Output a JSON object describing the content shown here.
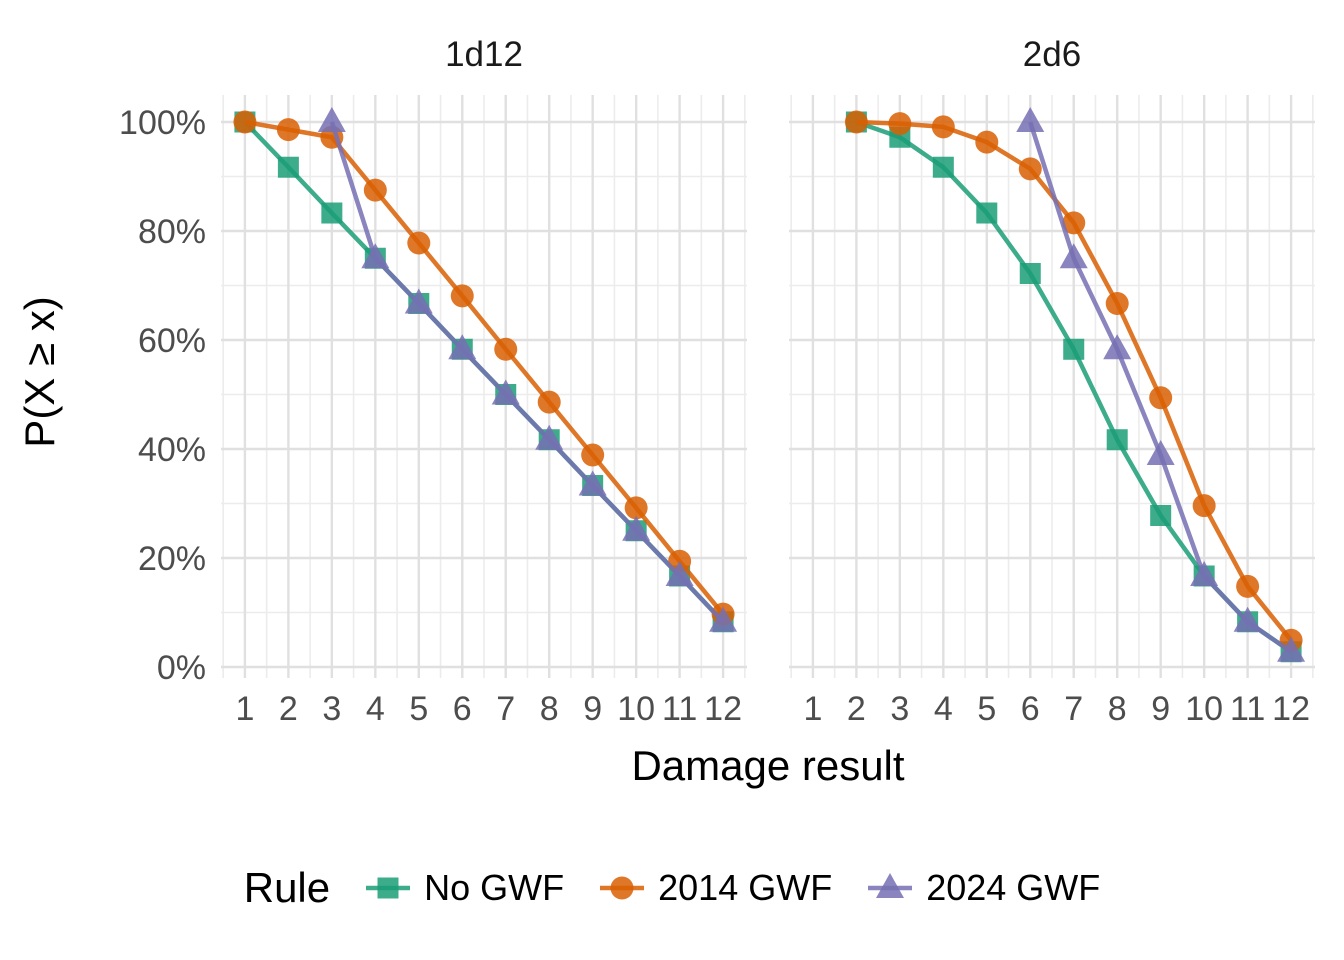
{
  "titles": {
    "x_axis": "Damage result",
    "y_axis": "P(X ≥ x)"
  },
  "legend": {
    "title": "Rule",
    "items": [
      "No GWF",
      "2014 GWF",
      "2024 GWF"
    ]
  },
  "axes": {
    "x_tick_labels": [
      "1",
      "2",
      "3",
      "4",
      "5",
      "6",
      "7",
      "8",
      "9",
      "10",
      "11",
      "12"
    ],
    "y_ticks": [
      {
        "value": 0,
        "label": "0%"
      },
      {
        "value": 20,
        "label": "20%"
      },
      {
        "value": 40,
        "label": "40%"
      },
      {
        "value": 60,
        "label": "60%"
      },
      {
        "value": 80,
        "label": "80%"
      },
      {
        "value": 100,
        "label": "100%"
      }
    ]
  },
  "chart_data": [
    {
      "type": "line",
      "title": "1d12",
      "xlabel": "Damage result",
      "ylabel": "P(X ≥ x)",
      "xlim": [
        1,
        12
      ],
      "ylim": [
        0,
        100
      ],
      "grid": true,
      "legend_position": "bottom",
      "series": [
        {
          "name": "No GWF",
          "color": "#1B9E77",
          "marker": "square",
          "x": [
            1,
            2,
            3,
            4,
            5,
            6,
            7,
            8,
            9,
            10,
            11,
            12
          ],
          "y": [
            100,
            91.7,
            83.3,
            75,
            66.7,
            58.3,
            50,
            41.7,
            33.3,
            25,
            16.7,
            8.3
          ]
        },
        {
          "name": "2014 GWF",
          "color": "#D95F02",
          "marker": "circle",
          "x": [
            1,
            2,
            3,
            4,
            5,
            6,
            7,
            8,
            9,
            10,
            11,
            12
          ],
          "y": [
            100,
            98.6,
            97.2,
            87.5,
            77.8,
            68.1,
            58.3,
            48.6,
            38.9,
            29.2,
            19.4,
            9.7
          ]
        },
        {
          "name": "2024 GWF",
          "color": "#7570B3",
          "marker": "triangle",
          "x": [
            3,
            4,
            5,
            6,
            7,
            8,
            9,
            10,
            11,
            12
          ],
          "y": [
            100,
            75,
            66.7,
            58.3,
            50,
            41.7,
            33.3,
            25,
            16.7,
            8.3
          ]
        }
      ]
    },
    {
      "type": "line",
      "title": "2d6",
      "xlabel": "Damage result",
      "ylabel": "P(X ≥ x)",
      "xlim": [
        1,
        12
      ],
      "ylim": [
        0,
        100
      ],
      "grid": true,
      "legend_position": "bottom",
      "series": [
        {
          "name": "No GWF",
          "color": "#1B9E77",
          "marker": "square",
          "x": [
            2,
            3,
            4,
            5,
            6,
            7,
            8,
            9,
            10,
            11,
            12
          ],
          "y": [
            100,
            97.2,
            91.7,
            83.3,
            72.2,
            58.3,
            41.7,
            27.8,
            16.7,
            8.3,
            2.8
          ]
        },
        {
          "name": "2014 GWF",
          "color": "#D95F02",
          "marker": "circle",
          "x": [
            2,
            3,
            4,
            5,
            6,
            7,
            8,
            9,
            10,
            11,
            12
          ],
          "y": [
            100,
            99.7,
            99.1,
            96.3,
            91.4,
            81.5,
            66.7,
            49.4,
            29.6,
            14.8,
            4.9
          ]
        },
        {
          "name": "2024 GWF",
          "color": "#7570B3",
          "marker": "triangle",
          "x": [
            6,
            7,
            8,
            9,
            10,
            11,
            12
          ],
          "y": [
            100,
            75,
            58.3,
            38.9,
            16.7,
            8.3,
            2.8
          ]
        }
      ]
    }
  ]
}
